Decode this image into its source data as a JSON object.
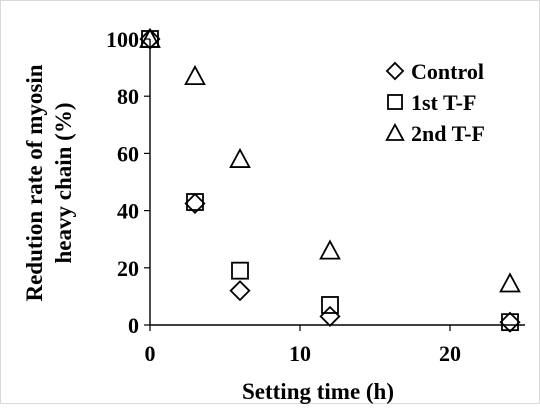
{
  "chart_data": {
    "type": "scatter",
    "title": "",
    "xlabel": "Setting time (h)",
    "ylabel_lines": [
      "Redution rate of myosin",
      "heavy chain (%)"
    ],
    "xlim": [
      0,
      25
    ],
    "ylim": [
      0,
      100
    ],
    "xticks": [
      0,
      10,
      20
    ],
    "yticks": [
      0,
      20,
      40,
      60,
      80,
      100
    ],
    "grid": false,
    "legend_position": "top-right",
    "series": [
      {
        "name": "Control",
        "marker": "diamond",
        "x": [
          0,
          3,
          6,
          12,
          24
        ],
        "y": [
          100,
          42.5,
          12,
          3,
          1
        ]
      },
      {
        "name": "1st T-F",
        "marker": "square",
        "x": [
          0,
          3,
          6,
          12,
          24
        ],
        "y": [
          100,
          43,
          19,
          7,
          1
        ]
      },
      {
        "name": "2nd T-F",
        "marker": "triangle",
        "x": [
          0,
          3,
          6,
          12,
          24
        ],
        "y": [
          100,
          87,
          58,
          26,
          14.5
        ]
      }
    ]
  }
}
